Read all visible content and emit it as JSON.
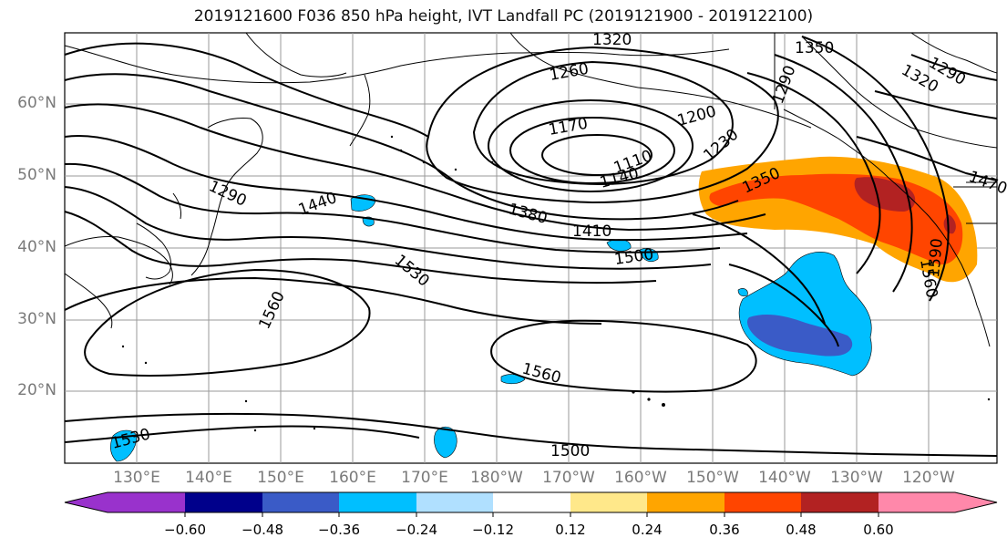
{
  "title": "2019121600 F036 850 hPa height, IVT Landfall PC (2019121900 - 2019122100)",
  "lat_labels": [
    "60°N",
    "50°N",
    "40°N",
    "30°N",
    "20°N"
  ],
  "lon_labels": [
    "130°E",
    "140°E",
    "150°E",
    "160°E",
    "170°E",
    "180°W",
    "170°W",
    "160°W",
    "150°W",
    "140°W",
    "130°W",
    "120°W"
  ],
  "contour_labels": [
    "1320",
    "1350",
    "1290",
    "1320",
    "1260",
    "1290",
    "1170",
    "1200",
    "1110",
    "1230",
    "1140",
    "1350",
    "1290",
    "1440",
    "1380",
    "1410",
    "1500",
    "1530",
    "1560",
    "1560",
    "1530",
    "1500",
    "1590",
    "1560",
    "1470"
  ],
  "colorbar": {
    "tick_labels": [
      "−0.60",
      "−0.48",
      "−0.36",
      "−0.24",
      "−0.12",
      "0.12",
      "0.24",
      "0.36",
      "0.48",
      "0.60"
    ],
    "colors": [
      "#9932cc",
      "#00008b",
      "#3a5bc7",
      "#00bfff",
      "#b0e0ff",
      "#ffffff",
      "#ffe88a",
      "#ffa500",
      "#ff4500",
      "#b22222",
      "#ff88aa"
    ]
  },
  "colors": {
    "contour": "#000000",
    "grid": "#9a9a9a",
    "axis_label": "#7a7a7a"
  }
}
